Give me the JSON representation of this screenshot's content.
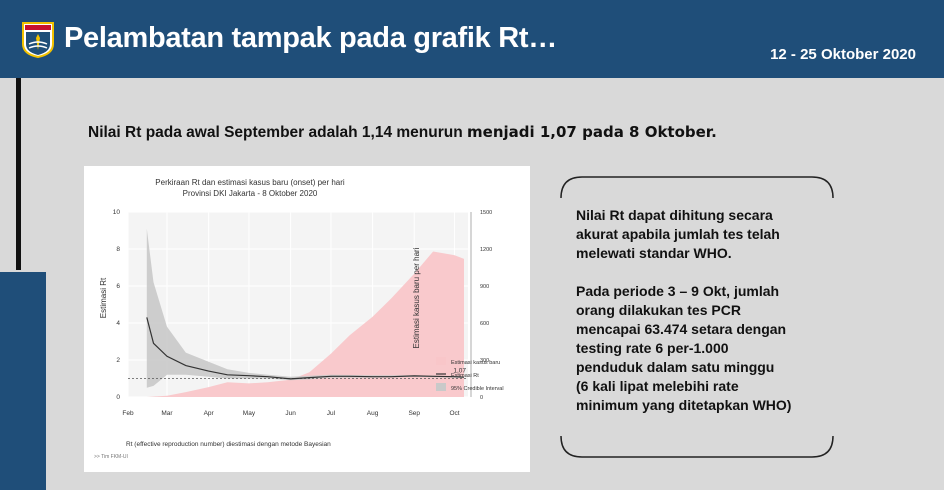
{
  "header": {
    "title": "Pelambatan tampak pada grafik Rt…",
    "date_range": "12 -  25 Oktober 2020",
    "logo_label": "JAYA RAYA"
  },
  "subtitle": {
    "part1": "Nilai Rt pada awal September adalah 1,14 menurun ",
    "part2": "menjadi 1,07 pada 8 Oktober."
  },
  "note": {
    "para1": [
      "Nilai Rt dapat dihitung secara",
      "akurat apabila jumlah tes telah",
      "melewati standar WHO."
    ],
    "para2": [
      "Pada periode 3 – 9 Okt, jumlah",
      "orang dilakukan tes PCR",
      "mencapai 63.474 setara dengan",
      "testing rate 6 per-1.000",
      "penduduk dalam satu minggu",
      "(6 kali lipat melebihi rate",
      "minimum yang ditetapkan WHO)"
    ]
  },
  "colors": {
    "header_bg": "#1f4e79",
    "cases_fill": "#f9c6c9",
    "ci_fill": "#c9c9c9",
    "rt_line": "#333333"
  },
  "chart_data": {
    "type": "area",
    "title": "Perkiraan Rt dan estimasi kasus baru (onset) per hari",
    "subtitle": "Provinsi DKI Jakarta - 8 Oktober 2020",
    "ylabel": "Estimasi Rt",
    "ylabel_right": "Estimasi kasus baru per hari",
    "caption": "Rt (effective reproduction number) diestimasi dengan metode Bayesian",
    "source": ">> Tim FKM-UI",
    "x_ticks": [
      "Feb",
      "Mar",
      "Apr",
      "May",
      "Jun",
      "Jul",
      "Aug",
      "Sep",
      "Oct"
    ],
    "ylim": [
      0,
      10
    ],
    "y_ticks": [
      0,
      2,
      4,
      6,
      8,
      10
    ],
    "ylim_right": [
      0,
      1500
    ],
    "y_ticks_right": [
      0,
      300,
      600,
      900,
      1200,
      1500
    ],
    "reference_line": 1,
    "annotation": "1,07",
    "legend": [
      "Estimasi kasus baru",
      "Estimasi Rt",
      "95% Credible Interval"
    ],
    "legend_position": "right",
    "series": [
      {
        "name": "Estimasi kasus baru",
        "axis": "right",
        "x": [
          "2020-02-15",
          "2020-03-01",
          "2020-03-15",
          "2020-04-01",
          "2020-04-15",
          "2020-05-01",
          "2020-05-15",
          "2020-06-01",
          "2020-06-15",
          "2020-07-01",
          "2020-07-15",
          "2020-08-01",
          "2020-08-15",
          "2020-09-01",
          "2020-09-15",
          "2020-10-01",
          "2020-10-08"
        ],
        "values": [
          0,
          10,
          40,
          80,
          120,
          110,
          120,
          140,
          200,
          350,
          500,
          650,
          800,
          1000,
          1180,
          1150,
          1120
        ]
      },
      {
        "name": "Estimasi Rt",
        "axis": "left",
        "x": [
          "2020-02-15",
          "2020-02-20",
          "2020-03-01",
          "2020-03-15",
          "2020-04-01",
          "2020-04-15",
          "2020-05-01",
          "2020-05-15",
          "2020-06-01",
          "2020-06-15",
          "2020-07-01",
          "2020-07-15",
          "2020-08-01",
          "2020-08-15",
          "2020-09-01",
          "2020-09-15",
          "2020-10-01",
          "2020-10-08"
        ],
        "values": [
          4.3,
          2.9,
          2.2,
          1.7,
          1.4,
          1.2,
          1.15,
          1.1,
          0.98,
          1.05,
          1.12,
          1.12,
          1.1,
          1.1,
          1.14,
          1.12,
          1.1,
          1.07
        ]
      },
      {
        "name": "95% Credible Interval",
        "axis": "left",
        "x": [
          "2020-02-15",
          "2020-02-20",
          "2020-03-01",
          "2020-03-15",
          "2020-04-01",
          "2020-04-15",
          "2020-05-01",
          "2020-05-15",
          "2020-06-01",
          "2020-06-15",
          "2020-07-01",
          "2020-08-01",
          "2020-09-01",
          "2020-10-08"
        ],
        "upper": [
          9.1,
          6.2,
          3.8,
          2.4,
          1.9,
          1.5,
          1.3,
          1.2,
          1.1,
          1.15,
          1.2,
          1.18,
          1.18,
          1.12
        ],
        "lower": [
          0.5,
          0.6,
          1.2,
          1.2,
          1.1,
          1.0,
          1.0,
          1.0,
          0.9,
          0.95,
          1.05,
          1.04,
          1.1,
          1.02
        ]
      }
    ]
  }
}
